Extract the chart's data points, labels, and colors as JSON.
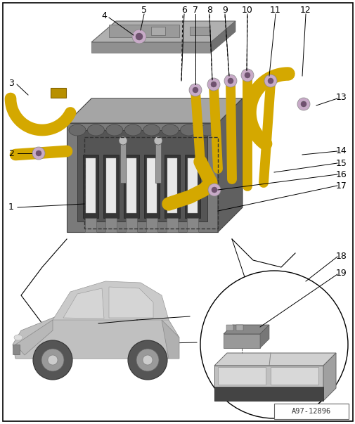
{
  "fig_width": 5.06,
  "fig_height": 6.03,
  "dpi": 100,
  "watermark": "A97-12896",
  "bg_color": "white",
  "wire_color": "#d4a800",
  "bolt_color_outer": "#c8aac8",
  "bolt_color_inner": "#705070",
  "leader_color": "#222222",
  "box_gray": "#888888",
  "box_light": "#c0c0c0",
  "box_dark": "#606060"
}
